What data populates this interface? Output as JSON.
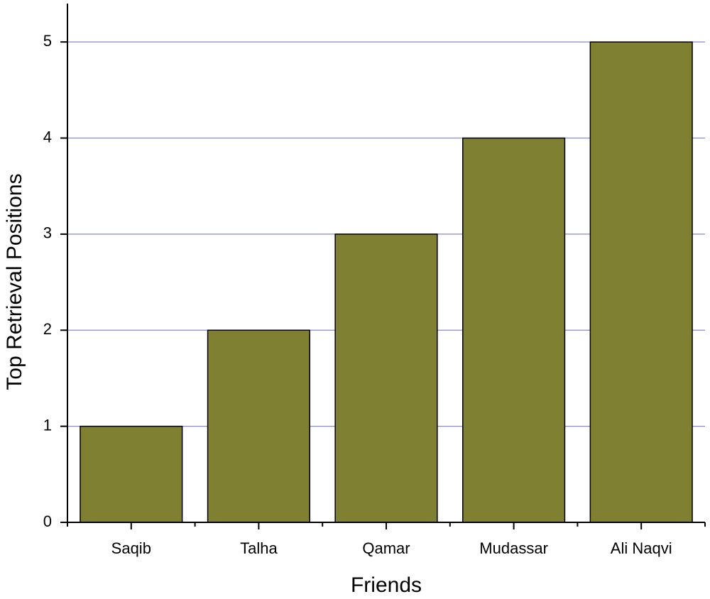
{
  "chart_data": {
    "type": "bar",
    "x_label": "Friends",
    "y_label": "Top Retrieval Positions",
    "categories": [
      "Saqib",
      "Talha",
      "Qamar",
      "Mudassar",
      "Ali Naqvi"
    ],
    "values": [
      1,
      2,
      3,
      4,
      5
    ],
    "color": "#808033",
    "ylim": [
      0,
      5.4
    ],
    "yticks": [
      0,
      1,
      2,
      3,
      4,
      5
    ],
    "grid": true
  }
}
